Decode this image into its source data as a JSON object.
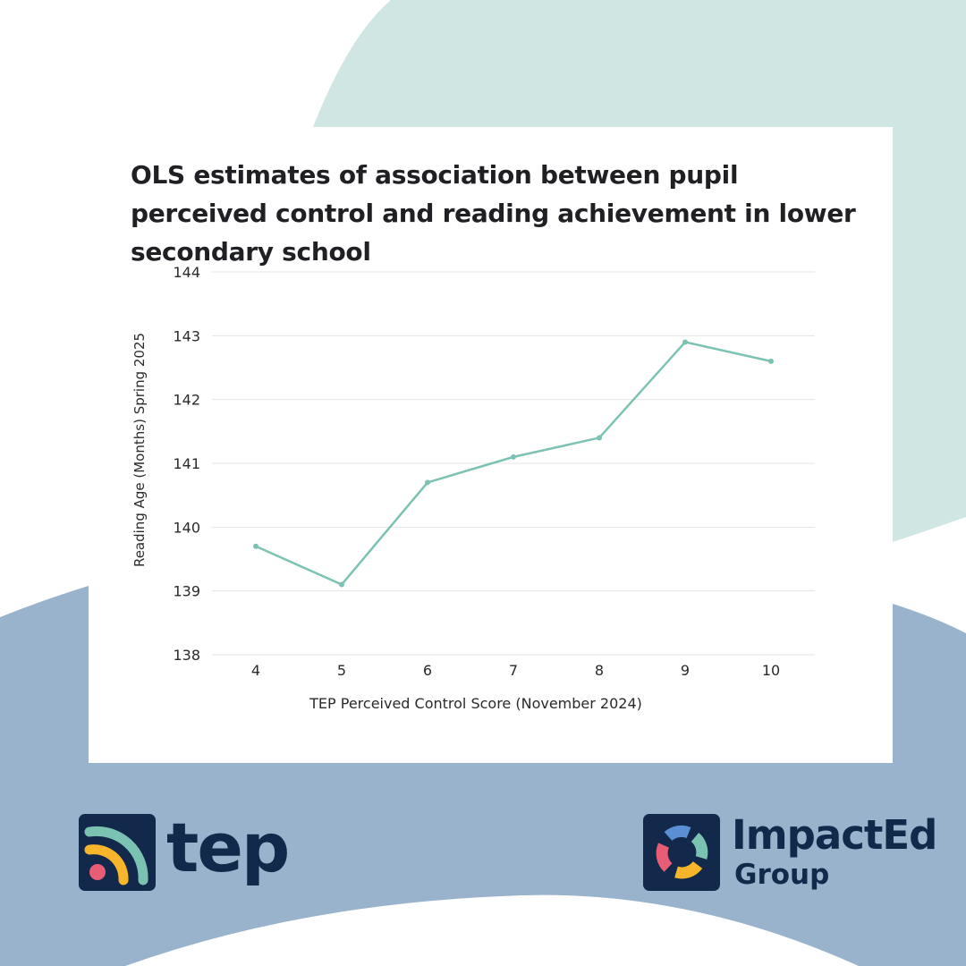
{
  "title": "OLS estimates of association between pupil perceived control and reading achievement in lower secondary school",
  "colors": {
    "background": "#ffffff",
    "mint_shape": "#cfe6e2",
    "blue_shape": "#98b3cb",
    "line": "#7cc2b3",
    "grid": "#e4e4e4",
    "navy": "#13294b"
  },
  "chart_data": {
    "type": "line",
    "title": "",
    "xlabel": "TEP Perceived Control Score (November 2024)",
    "ylabel": "Reading Age (Months) Spring 2025",
    "x": [
      4,
      5,
      6,
      7,
      8,
      9,
      10
    ],
    "series": [
      {
        "values": [
          139.7,
          139.1,
          140.7,
          141.1,
          141.4,
          142.9,
          142.6
        ]
      }
    ],
    "ylim": [
      138,
      144
    ],
    "yticks": [
      138,
      139,
      140,
      141,
      142,
      143,
      144
    ],
    "grid": true,
    "legend": "none"
  },
  "logos": {
    "tep": {
      "text": "tep",
      "icon": "tep-signal-icon"
    },
    "impacted": {
      "name": "ImpactEd",
      "sub": "Group",
      "icon": "impacted-ring-icon"
    }
  }
}
